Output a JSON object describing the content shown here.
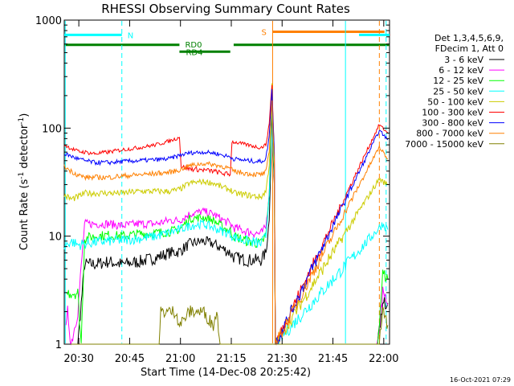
{
  "chart_data": {
    "type": "line",
    "title": "RHESSI Observing Summary Count Rates",
    "xlabel": "Start Time (14-Dec-08 20:25:42)",
    "ylabel_main": "Count Rate (s",
    "ylabel_sup1": "-1",
    "ylabel_mid": " detector",
    "ylabel_sup2": "-1",
    "ylabel_end": ")",
    "ylabel": "Count Rate (s^-1 detector^-1)",
    "y_scale": "log",
    "ylim": [
      1,
      1000
    ],
    "x_range_min": [
      0,
      96
    ],
    "x_ticks": [
      {
        "t": 4.3,
        "label": "20:30"
      },
      {
        "t": 19.3,
        "label": "20:45"
      },
      {
        "t": 34.3,
        "label": "21:00"
      },
      {
        "t": 49.3,
        "label": "21:15"
      },
      {
        "t": 64.3,
        "label": "21:30"
      },
      {
        "t": 79.3,
        "label": "21:45"
      },
      {
        "t": 94.3,
        "label": "22:00"
      }
    ],
    "y_ticks": [
      {
        "v": 1,
        "label": "1"
      },
      {
        "v": 10,
        "label": "10"
      },
      {
        "v": 100,
        "label": "100"
      },
      {
        "v": 1000,
        "label": "1000"
      }
    ],
    "legend_header": [
      "Det 1,3,4,5,6,9,",
      "FDecim 1, Att 0"
    ],
    "legend_position": "right",
    "timestamp": "16-Oct-2021 07:29",
    "flags": [
      {
        "label": "N",
        "y": 730,
        "color": "#00ffff",
        "segments": [
          [
            0,
            17
          ],
          [
            87,
            96
          ]
        ]
      },
      {
        "label": "S",
        "y": 780,
        "color": "#ff8000",
        "segments": [
          [
            61.5,
            94.5
          ]
        ]
      },
      {
        "label": "RD0",
        "y": 590,
        "color": "#008000",
        "segments": [
          [
            0,
            34
          ],
          [
            50,
            96
          ]
        ]
      },
      {
        "label": "RD4",
        "y": 510,
        "color": "#008000",
        "segments": [
          [
            34,
            49
          ]
        ]
      }
    ],
    "vlines": [
      {
        "t": 0.3,
        "color": "#00ffff",
        "dash": false
      },
      {
        "t": 17,
        "color": "#00ffff",
        "dash": true
      },
      {
        "t": 61.5,
        "color": "#ff8000",
        "dash": false
      },
      {
        "t": 83,
        "color": "#00ffff",
        "dash": false
      },
      {
        "t": 93,
        "color": "#ff8000",
        "dash": true
      },
      {
        "t": 95,
        "color": "#00ffff",
        "dash": true
      }
    ],
    "series": [
      {
        "name": "3 - 6 keV",
        "color": "#000000",
        "points": [
          [
            0.5,
            1
          ],
          [
            2,
            1
          ],
          [
            4,
            1
          ],
          [
            6,
            5.5
          ],
          [
            9,
            5.5
          ],
          [
            13,
            5.8
          ],
          [
            17,
            5.5
          ],
          [
            22,
            5.8
          ],
          [
            27,
            6.3
          ],
          [
            31,
            7
          ],
          [
            34,
            7.2
          ],
          [
            37,
            8.5
          ],
          [
            41,
            9
          ],
          [
            44,
            8.5
          ],
          [
            47,
            7.6
          ],
          [
            49,
            7
          ],
          [
            50,
            6.4
          ],
          [
            54,
            6
          ],
          [
            58,
            6
          ],
          [
            59.5,
            7
          ],
          [
            60.5,
            14
          ],
          [
            61,
            50
          ],
          [
            61.3,
            170
          ],
          [
            61.6,
            60
          ],
          [
            62,
            30
          ],
          [
            62.3,
            1
          ],
          [
            92.5,
            1
          ],
          [
            94,
            2.4
          ],
          [
            94.5,
            2.4
          ],
          [
            95.5,
            2.4
          ]
        ]
      },
      {
        "name": "6 - 12 keV",
        "color": "#ff00ff",
        "points": [
          [
            0.5,
            1.5
          ],
          [
            1,
            2
          ],
          [
            2,
            1
          ],
          [
            4,
            2
          ],
          [
            6,
            13
          ],
          [
            9,
            13
          ],
          [
            13,
            13
          ],
          [
            17,
            12.5
          ],
          [
            22,
            13
          ],
          [
            27,
            13
          ],
          [
            31,
            14
          ],
          [
            34,
            14
          ],
          [
            37,
            16
          ],
          [
            41,
            17
          ],
          [
            44,
            16
          ],
          [
            47,
            14
          ],
          [
            49,
            13
          ],
          [
            50,
            12
          ],
          [
            54,
            11
          ],
          [
            58,
            10.5
          ],
          [
            59.5,
            12
          ],
          [
            60.5,
            25
          ],
          [
            61,
            80
          ],
          [
            61.3,
            250
          ],
          [
            61.6,
            80
          ],
          [
            62,
            35
          ],
          [
            62.3,
            1
          ],
          [
            92.5,
            1
          ],
          [
            94,
            3
          ],
          [
            95,
            2.5
          ],
          [
            95.5,
            2.3
          ]
        ]
      },
      {
        "name": "12 - 25 keV",
        "color": "#00ff00",
        "points": [
          [
            0.5,
            3
          ],
          [
            1,
            3
          ],
          [
            2,
            3
          ],
          [
            4,
            3
          ],
          [
            5,
            1
          ],
          [
            6,
            9.5
          ],
          [
            9,
            10
          ],
          [
            13,
            10.2
          ],
          [
            17,
            10
          ],
          [
            22,
            10.5
          ],
          [
            27,
            10.7
          ],
          [
            31,
            11
          ],
          [
            34,
            11.5
          ],
          [
            37,
            14.5
          ],
          [
            41,
            15
          ],
          [
            44,
            14
          ],
          [
            47,
            12
          ],
          [
            49,
            11.2
          ],
          [
            50,
            10
          ],
          [
            54,
            9
          ],
          [
            58,
            8.5
          ],
          [
            59.5,
            10
          ],
          [
            60.5,
            24
          ],
          [
            61,
            75
          ],
          [
            61.3,
            230
          ],
          [
            61.6,
            75
          ],
          [
            62,
            35
          ],
          [
            62.3,
            1
          ],
          [
            92.5,
            1
          ],
          [
            94,
            4.5
          ],
          [
            95.5,
            4
          ]
        ]
      },
      {
        "name": "25 - 50 keV",
        "color": "#00ffff",
        "points": [
          [
            0,
            8
          ],
          [
            2,
            9
          ],
          [
            4,
            8.3
          ],
          [
            6,
            8.5
          ],
          [
            9,
            8.8
          ],
          [
            13,
            9
          ],
          [
            17,
            9.2
          ],
          [
            22,
            9.5
          ],
          [
            27,
            10
          ],
          [
            31,
            10.8
          ],
          [
            34,
            11.5
          ],
          [
            37,
            12.5
          ],
          [
            41,
            13
          ],
          [
            44,
            12
          ],
          [
            47,
            11
          ],
          [
            49,
            10.5
          ],
          [
            50,
            9.8
          ],
          [
            54,
            9
          ],
          [
            58,
            8.5
          ],
          [
            59.5,
            10
          ],
          [
            60.5,
            24
          ],
          [
            61,
            75
          ],
          [
            61.3,
            230
          ],
          [
            61.6,
            75
          ],
          [
            62,
            35
          ],
          [
            62.3,
            1
          ],
          [
            93,
            12
          ],
          [
            94,
            13
          ],
          [
            95.5,
            11.5
          ]
        ]
      },
      {
        "name": "50 - 100 keV",
        "color": "#cccc00",
        "points": [
          [
            0,
            24
          ],
          [
            2,
            22
          ],
          [
            4,
            23
          ],
          [
            6,
            25
          ],
          [
            9,
            25
          ],
          [
            13,
            25
          ],
          [
            17,
            25
          ],
          [
            22,
            26
          ],
          [
            27,
            26
          ],
          [
            31,
            26
          ],
          [
            34,
            27
          ],
          [
            37,
            31
          ],
          [
            41,
            32
          ],
          [
            44,
            31
          ],
          [
            47,
            28
          ],
          [
            49,
            27
          ],
          [
            50,
            25
          ],
          [
            54,
            24
          ],
          [
            58,
            23
          ],
          [
            59.5,
            26
          ],
          [
            60.5,
            45
          ],
          [
            61,
            110
          ],
          [
            61.3,
            260
          ],
          [
            61.6,
            110
          ],
          [
            62,
            40
          ],
          [
            62.3,
            1
          ],
          [
            93,
            34
          ],
          [
            94,
            32
          ],
          [
            95.5,
            30
          ]
        ]
      },
      {
        "name": "100 - 300 keV",
        "color": "#ff0000",
        "points": [
          [
            0,
            70
          ],
          [
            2,
            65
          ],
          [
            4,
            61
          ],
          [
            6,
            60
          ],
          [
            9,
            58
          ],
          [
            13,
            60
          ],
          [
            17,
            63
          ],
          [
            22,
            66
          ],
          [
            27,
            70
          ],
          [
            31,
            76
          ],
          [
            34,
            82
          ],
          [
            34.5,
            44
          ],
          [
            37,
            42
          ],
          [
            41,
            41
          ],
          [
            44,
            40
          ],
          [
            47,
            38
          ],
          [
            49,
            37
          ],
          [
            49.5,
            75
          ],
          [
            54,
            70
          ],
          [
            58,
            66
          ],
          [
            59.5,
            70
          ],
          [
            60.5,
            110
          ],
          [
            61,
            190
          ],
          [
            61.3,
            250
          ],
          [
            61.6,
            130
          ],
          [
            62,
            60
          ],
          [
            62.3,
            1
          ],
          [
            93,
            108
          ],
          [
            94,
            100
          ],
          [
            95.5,
            90
          ]
        ]
      },
      {
        "name": "300 - 800 keV",
        "color": "#0000ff",
        "points": [
          [
            0,
            58
          ],
          [
            2,
            55
          ],
          [
            4,
            52
          ],
          [
            6,
            50
          ],
          [
            9,
            48
          ],
          [
            13,
            48
          ],
          [
            17,
            49
          ],
          [
            22,
            50
          ],
          [
            27,
            51
          ],
          [
            31,
            52
          ],
          [
            34,
            56
          ],
          [
            37,
            59
          ],
          [
            41,
            60
          ],
          [
            44,
            59
          ],
          [
            47,
            56
          ],
          [
            49,
            54
          ],
          [
            50,
            52
          ],
          [
            54,
            50
          ],
          [
            58,
            49
          ],
          [
            59.5,
            52
          ],
          [
            60.5,
            85
          ],
          [
            61,
            160
          ],
          [
            61.3,
            230
          ],
          [
            61.6,
            120
          ],
          [
            62,
            60
          ],
          [
            62.3,
            1
          ],
          [
            93,
            95
          ],
          [
            94,
            88
          ],
          [
            95.5,
            78
          ]
        ]
      },
      {
        "name": "800 - 7000 keV",
        "color": "#ff8000",
        "points": [
          [
            0,
            44
          ],
          [
            2,
            40
          ],
          [
            4,
            37
          ],
          [
            6,
            35
          ],
          [
            9,
            35
          ],
          [
            13,
            35
          ],
          [
            17,
            36
          ],
          [
            22,
            37
          ],
          [
            27,
            38
          ],
          [
            31,
            39
          ],
          [
            34,
            41
          ],
          [
            37,
            45
          ],
          [
            41,
            47
          ],
          [
            44,
            46
          ],
          [
            47,
            44
          ],
          [
            49,
            42
          ],
          [
            50,
            40
          ],
          [
            54,
            38
          ],
          [
            58,
            37
          ],
          [
            59.5,
            39
          ],
          [
            60.5,
            60
          ],
          [
            61,
            120
          ],
          [
            61.3,
            180
          ],
          [
            61.6,
            95
          ],
          [
            62,
            50
          ],
          [
            62.3,
            1
          ],
          [
            93,
            67
          ],
          [
            94,
            60
          ],
          [
            95.5,
            52
          ]
        ]
      },
      {
        "name": "7000 - 15000 keV",
        "color": "#808000",
        "points": [
          [
            0.5,
            1
          ],
          [
            28,
            1
          ],
          [
            28.5,
            2
          ],
          [
            33,
            2
          ],
          [
            34,
            1.5
          ],
          [
            37,
            2
          ],
          [
            41,
            2
          ],
          [
            44,
            1.5
          ],
          [
            45,
            2
          ],
          [
            46,
            1
          ],
          [
            93,
            1
          ],
          [
            94,
            2
          ],
          [
            95.5,
            1.5
          ]
        ]
      }
    ]
  }
}
